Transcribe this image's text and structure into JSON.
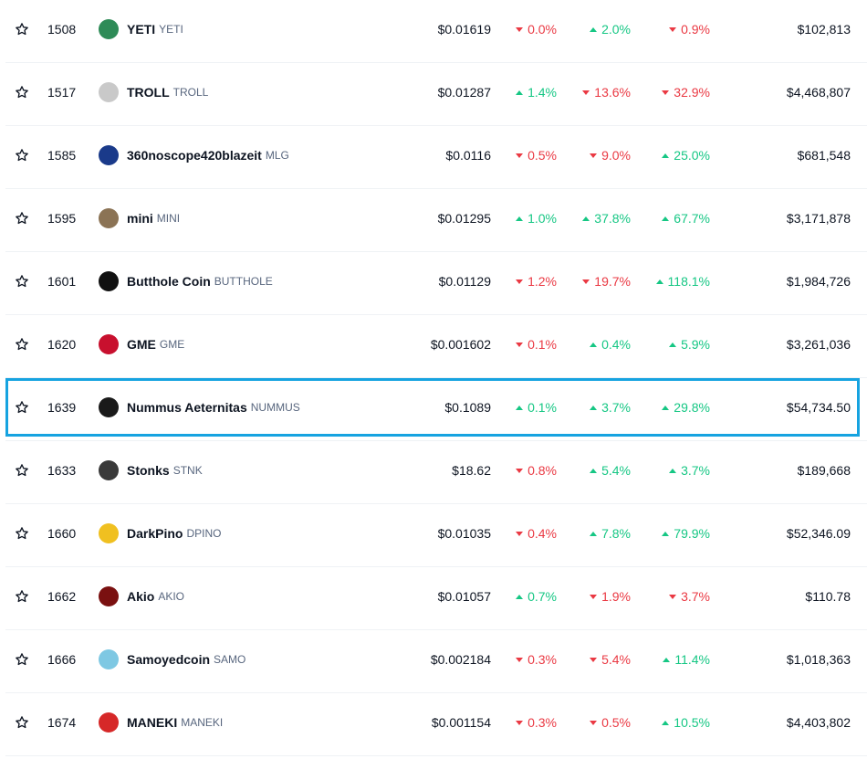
{
  "rows": [
    {
      "rank": "1508",
      "name": "YETI",
      "symbol": "YETI",
      "price": "$0.01619",
      "c1": "0.0%",
      "d1": "down",
      "c2": "2.0%",
      "d2": "up",
      "c3": "0.9%",
      "d3": "down",
      "mcap": "$102,813",
      "logo_color": "#2e8b57",
      "logo_icon": "yeti-logo-icon"
    },
    {
      "rank": "1517",
      "name": "TROLL",
      "symbol": "TROLL",
      "price": "$0.01287",
      "c1": "1.4%",
      "d1": "up",
      "c2": "13.6%",
      "d2": "down",
      "c3": "32.9%",
      "d3": "down",
      "mcap": "$4,468,807",
      "logo_color": "#c9c9c9",
      "logo_icon": "troll-logo-icon"
    },
    {
      "rank": "1585",
      "name": "360noscope420blazeit",
      "symbol": "MLG",
      "price": "$0.0116",
      "c1": "0.5%",
      "d1": "down",
      "c2": "9.0%",
      "d2": "down",
      "c3": "25.0%",
      "d3": "up",
      "mcap": "$681,548",
      "logo_color": "#1a3a8a",
      "logo_icon": "mlg-logo-icon"
    },
    {
      "rank": "1595",
      "name": "mini",
      "symbol": "MINI",
      "price": "$0.01295",
      "c1": "1.0%",
      "d1": "up",
      "c2": "37.8%",
      "d2": "up",
      "c3": "67.7%",
      "d3": "up",
      "mcap": "$3,171,878",
      "logo_color": "#8b7355",
      "logo_icon": "mini-logo-icon"
    },
    {
      "rank": "1601",
      "name": "Butthole Coin",
      "symbol": "BUTTHOLE",
      "price": "$0.01129",
      "c1": "1.2%",
      "d1": "down",
      "c2": "19.7%",
      "d2": "down",
      "c3": "118.1%",
      "d3": "up",
      "mcap": "$1,984,726",
      "logo_color": "#111111",
      "logo_icon": "butthole-logo-icon"
    },
    {
      "rank": "1620",
      "name": "GME",
      "symbol": "GME",
      "price": "$0.001602",
      "c1": "0.1%",
      "d1": "down",
      "c2": "0.4%",
      "d2": "up",
      "c3": "5.9%",
      "d3": "up",
      "mcap": "$3,261,036",
      "logo_color": "#c8102e",
      "logo_icon": "gme-logo-icon"
    },
    {
      "rank": "1639",
      "name": "Nummus Aeternitas",
      "symbol": "NUMMUS",
      "price": "$0.1089",
      "c1": "0.1%",
      "d1": "up",
      "c2": "3.7%",
      "d2": "up",
      "c3": "29.8%",
      "d3": "up",
      "mcap": "$54,734.50",
      "logo_color": "#1a1a1a",
      "logo_icon": "nummus-logo-icon",
      "highlight": true
    },
    {
      "rank": "1633",
      "name": "Stonks",
      "symbol": "STNK",
      "price": "$18.62",
      "c1": "0.8%",
      "d1": "down",
      "c2": "5.4%",
      "d2": "up",
      "c3": "3.7%",
      "d3": "up",
      "mcap": "$189,668",
      "logo_color": "#3a3a3a",
      "logo_icon": "stonks-logo-icon"
    },
    {
      "rank": "1660",
      "name": "DarkPino",
      "symbol": "DPINO",
      "price": "$0.01035",
      "c1": "0.4%",
      "d1": "down",
      "c2": "7.8%",
      "d2": "up",
      "c3": "79.9%",
      "d3": "up",
      "mcap": "$52,346.09",
      "logo_color": "#f0c020",
      "logo_icon": "darkpino-logo-icon"
    },
    {
      "rank": "1662",
      "name": "Akio",
      "symbol": "AKIO",
      "price": "$0.01057",
      "c1": "0.7%",
      "d1": "up",
      "c2": "1.9%",
      "d2": "down",
      "c3": "3.7%",
      "d3": "down",
      "mcap": "$110.78",
      "logo_color": "#7a1010",
      "logo_icon": "akio-logo-icon"
    },
    {
      "rank": "1666",
      "name": "Samoyedcoin",
      "symbol": "SAMO",
      "price": "$0.002184",
      "c1": "0.3%",
      "d1": "down",
      "c2": "5.4%",
      "d2": "down",
      "c3": "11.4%",
      "d3": "up",
      "mcap": "$1,018,363",
      "logo_color": "#7ec8e3",
      "logo_icon": "samoyedcoin-logo-icon"
    },
    {
      "rank": "1674",
      "name": "MANEKI",
      "symbol": "MANEKI",
      "price": "$0.001154",
      "c1": "0.3%",
      "d1": "down",
      "c2": "0.5%",
      "d2": "down",
      "c3": "10.5%",
      "d3": "up",
      "mcap": "$4,403,802",
      "logo_color": "#d62828",
      "logo_icon": "maneki-logo-icon"
    }
  ],
  "icons": {
    "star": "star-outline-icon",
    "arrow_up": "caret-up-icon",
    "arrow_down": "caret-down-icon"
  },
  "colors": {
    "up": "#16c784",
    "down": "#ea3943",
    "highlight_border": "#16a3e0"
  }
}
